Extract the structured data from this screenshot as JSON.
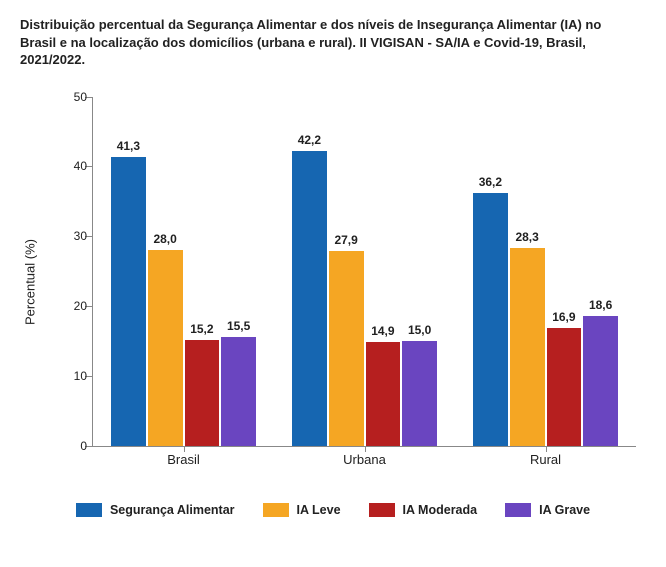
{
  "chart": {
    "type": "bar",
    "title": "Distribuição percentual da Segurança Alimentar e dos níveis de Insegurança Alimentar (IA) no Brasil e na localização dos domicílios (urbana e rural). II VIGISAN - SA/IA e Covid-19, Brasil, 2021/2022.",
    "ylabel": "Percentual (%)",
    "ylim": [
      0,
      50
    ],
    "ytick_step": 10,
    "background_color": "#ffffff",
    "axis_color": "#888888",
    "label_fontsize": 13,
    "title_fontsize": 13,
    "bar_label_fontsize": 12,
    "series": [
      {
        "name": "Segurança Alimentar",
        "color": "#1666b1"
      },
      {
        "name": "IA Leve",
        "color": "#f5a623"
      },
      {
        "name": "IA Moderada",
        "color": "#b61f1f"
      },
      {
        "name": "IA Grave",
        "color": "#6a45c0"
      }
    ],
    "categories": [
      "Brasil",
      "Urbana",
      "Rural"
    ],
    "values": [
      [
        41.3,
        28.0,
        15.2,
        15.5
      ],
      [
        42.2,
        27.9,
        14.9,
        15.0
      ],
      [
        36.2,
        28.3,
        16.9,
        18.6
      ]
    ],
    "value_labels": [
      [
        "41,3",
        "28,0",
        "15,2",
        "15,5"
      ],
      [
        "42,2",
        "27,9",
        "14,9",
        "15,0"
      ],
      [
        "36,2",
        "28,3",
        "16,9",
        "18,6"
      ]
    ]
  }
}
